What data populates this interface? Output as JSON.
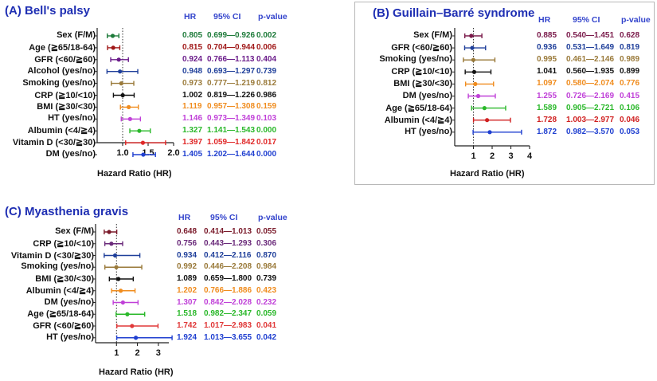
{
  "chart_data": [
    {
      "type": "forest",
      "title": "(A) Bell's palsy",
      "xlabel": "Hazard Ratio (HR)",
      "xlim": [
        0.5,
        2.0
      ],
      "xticks": [
        "1.0",
        "1.5",
        "2.0"
      ],
      "xtick_values": [
        1.0,
        1.5,
        2.0
      ],
      "reference_line": 1.0,
      "columns": [
        "HR",
        "95% CI",
        "p-value"
      ],
      "rows": [
        {
          "label": "Sex (F/M)",
          "hr": 0.805,
          "lo": 0.699,
          "hi": 0.926,
          "hr_text": "0.805",
          "ci_text": "0.699—0.926",
          "p_text": "0.002",
          "color": "#1e7b3a"
        },
        {
          "label": "Age (≧65/18-64)",
          "hr": 0.815,
          "lo": 0.704,
          "hi": 0.944,
          "hr_text": "0.815",
          "ci_text": "0.704—0.944",
          "p_text": "0.006",
          "color": "#a01818"
        },
        {
          "label": "GFR (<60/≧60)",
          "hr": 0.924,
          "lo": 0.766,
          "hi": 1.113,
          "hr_text": "0.924",
          "ci_text": "0.766—1.113",
          "p_text": "0.404",
          "color": "#6a1b8a"
        },
        {
          "label": "Alcohol (yes/no)",
          "hr": 0.948,
          "lo": 0.693,
          "hi": 1.297,
          "hr_text": "0.948",
          "ci_text": "0.693—1.297",
          "p_text": "0.739",
          "color": "#1f3f9a"
        },
        {
          "label": "Smoking (yes/no)",
          "hr": 0.973,
          "lo": 0.777,
          "hi": 1.219,
          "hr_text": "0.973",
          "ci_text": "0.777—1.219",
          "p_text": "0.812",
          "color": "#9a7a3a"
        },
        {
          "label": "CRP (≧10/<10)",
          "hr": 1.002,
          "lo": 0.819,
          "hi": 1.226,
          "hr_text": "1.002",
          "ci_text": "0.819—1.226",
          "p_text": "0.986",
          "color": "#111111"
        },
        {
          "label": "BMI (≧30/<30)",
          "hr": 1.119,
          "lo": 0.957,
          "hi": 1.308,
          "hr_text": "1.119",
          "ci_text": "0.957—1.308",
          "p_text": "0.159",
          "color": "#f08c1e"
        },
        {
          "label": "HT (yes/no)",
          "hr": 1.146,
          "lo": 0.973,
          "hi": 1.349,
          "hr_text": "1.146",
          "ci_text": "0.973—1.349",
          "p_text": "0.103",
          "color": "#c040d8"
        },
        {
          "label": "Albumin (<4/≧4)",
          "hr": 1.327,
          "lo": 1.141,
          "hi": 1.543,
          "hr_text": "1.327",
          "ci_text": "1.141—1.543",
          "p_text": "0.000",
          "color": "#2ab82a"
        },
        {
          "label": "Vitamin D (<30/≧30)",
          "hr": 1.397,
          "lo": 1.059,
          "hi": 1.842,
          "hr_text": "1.397",
          "ci_text": "1.059—1.842",
          "p_text": "0.017",
          "color": "#e02828"
        },
        {
          "label": "DM (yes/no)",
          "hr": 1.405,
          "lo": 1.202,
          "hi": 1.644,
          "hr_text": "1.405",
          "ci_text": "1.202—1.644",
          "p_text": "0.000",
          "color": "#1f3fd0"
        }
      ]
    },
    {
      "type": "forest",
      "title": "(B) Guillain–Barré syndrome",
      "xlabel": "Hazard Ratio (HR)",
      "xlim": [
        0,
        4
      ],
      "xticks": [
        "1",
        "2",
        "3",
        "4"
      ],
      "xtick_values": [
        1,
        2,
        3,
        4
      ],
      "reference_line": 1.0,
      "columns": [
        "HR",
        "95% CI",
        "p-value"
      ],
      "rows": [
        {
          "label": "Sex (F/M)",
          "hr": 0.885,
          "lo": 0.54,
          "hi": 1.451,
          "hr_text": "0.885",
          "ci_text": "0.540—1.451",
          "p_text": "0.628",
          "color": "#7a1a4a"
        },
        {
          "label": "GFR (<60/≧60)",
          "hr": 0.936,
          "lo": 0.531,
          "hi": 1.649,
          "hr_text": "0.936",
          "ci_text": "0.531—1.649",
          "p_text": "0.819",
          "color": "#1f3f9a"
        },
        {
          "label": "Smoking (yes/no)",
          "hr": 0.995,
          "lo": 0.461,
          "hi": 2.146,
          "hr_text": "0.995",
          "ci_text": "0.461—2.146",
          "p_text": "0.989",
          "color": "#9a7a3a"
        },
        {
          "label": "CRP (≧10/<10)",
          "hr": 1.041,
          "lo": 0.56,
          "hi": 1.935,
          "hr_text": "1.041",
          "ci_text": "0.560—1.935",
          "p_text": "0.899",
          "color": "#111111"
        },
        {
          "label": "BMI (≧30/<30)",
          "hr": 1.097,
          "lo": 0.58,
          "hi": 2.074,
          "hr_text": "1.097",
          "ci_text": "0.580—2.074",
          "p_text": "0.776",
          "color": "#f08c1e"
        },
        {
          "label": "DM (yes/no)",
          "hr": 1.255,
          "lo": 0.726,
          "hi": 2.169,
          "hr_text": "1.255",
          "ci_text": "0.726—2.169",
          "p_text": "0.415",
          "color": "#c040d8"
        },
        {
          "label": "Age (≧65/18-64)",
          "hr": 1.589,
          "lo": 0.905,
          "hi": 2.721,
          "hr_text": "1.589",
          "ci_text": "0.905—2.721",
          "p_text": "0.106",
          "color": "#2ab82a"
        },
        {
          "label": "Albumin (<4/≧4)",
          "hr": 1.728,
          "lo": 1.003,
          "hi": 2.977,
          "hr_text": "1.728",
          "ci_text": "1.003—2.977",
          "p_text": "0.046",
          "color": "#d02020"
        },
        {
          "label": "HT (yes/no)",
          "hr": 1.872,
          "lo": 0.982,
          "hi": 3.57,
          "hr_text": "1.872",
          "ci_text": "0.982—3.570",
          "p_text": "0.053",
          "color": "#1f3fd0"
        }
      ]
    },
    {
      "type": "forest",
      "title": "(C) Myasthenia gravis",
      "xlabel": "Hazard Ratio (HR)",
      "xlim": [
        0,
        3.5
      ],
      "xticks": [
        "1",
        "2",
        "3"
      ],
      "xtick_values": [
        1,
        2,
        3
      ],
      "reference_line": 1.0,
      "columns": [
        "HR",
        "95% CI",
        "p-value"
      ],
      "rows": [
        {
          "label": "Sex (F/M)",
          "hr": 0.648,
          "lo": 0.414,
          "hi": 1.013,
          "hr_text": "0.648",
          "ci_text": "0.414—1.013",
          "p_text": "0.055",
          "color": "#7a1a2a"
        },
        {
          "label": "CRP (≧10/<10)",
          "hr": 0.756,
          "lo": 0.443,
          "hi": 1.293,
          "hr_text": "0.756",
          "ci_text": "0.443—1.293",
          "p_text": "0.306",
          "color": "#6a2a7a"
        },
        {
          "label": "Vitamin D (<30/≧30)",
          "hr": 0.934,
          "lo": 0.412,
          "hi": 2.116,
          "hr_text": "0.934",
          "ci_text": "0.412—2.116",
          "p_text": "0.870",
          "color": "#1f3f9a"
        },
        {
          "label": "Smoking (yes/no)",
          "hr": 0.992,
          "lo": 0.446,
          "hi": 2.208,
          "hr_text": "0.992",
          "ci_text": "0.446—2.208",
          "p_text": "0.984",
          "color": "#9a7a3a"
        },
        {
          "label": "BMI (≧30/<30)",
          "hr": 1.089,
          "lo": 0.659,
          "hi": 1.8,
          "hr_text": "1.089",
          "ci_text": "0.659—1.800",
          "p_text": "0.739",
          "color": "#111111"
        },
        {
          "label": "Albumin (<4/≧4)",
          "hr": 1.202,
          "lo": 0.766,
          "hi": 1.886,
          "hr_text": "1.202",
          "ci_text": "0.766—1.886",
          "p_text": "0.423",
          "color": "#f08c1e"
        },
        {
          "label": "DM (yes/no)",
          "hr": 1.307,
          "lo": 0.842,
          "hi": 2.028,
          "hr_text": "1.307",
          "ci_text": "0.842—2.028",
          "p_text": "0.232",
          "color": "#c040d8"
        },
        {
          "label": "Age (≧65/18-64)",
          "hr": 1.518,
          "lo": 0.982,
          "hi": 2.347,
          "hr_text": "1.518",
          "ci_text": "0.982—2.347",
          "p_text": "0.059",
          "color": "#2ab82a"
        },
        {
          "label": "GFR (<60/≧60)",
          "hr": 1.742,
          "lo": 1.017,
          "hi": 2.983,
          "hr_text": "1.742",
          "ci_text": "1.017—2.983",
          "p_text": "0.041",
          "color": "#e03838"
        },
        {
          "label": "HT (yes/no)",
          "hr": 1.924,
          "lo": 1.013,
          "hi": 3.655,
          "hr_text": "1.924",
          "ci_text": "1.013—3.655",
          "p_text": "0.042",
          "color": "#1f3fd0"
        }
      ]
    }
  ]
}
